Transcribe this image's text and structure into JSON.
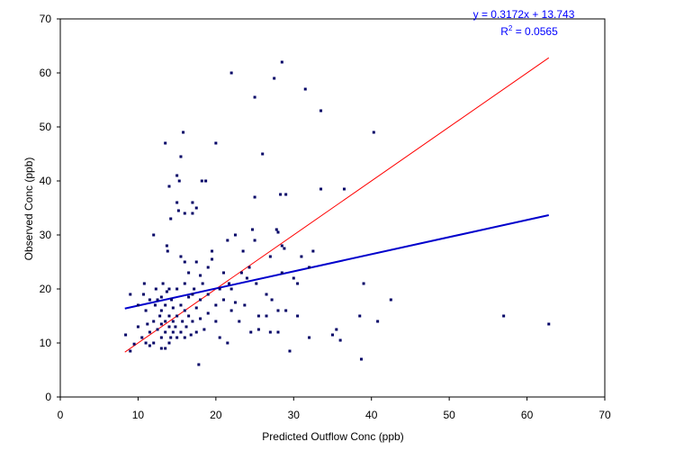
{
  "chart_data": {
    "type": "scatter",
    "title": "",
    "xlabel": "Predicted Outflow Conc (ppb)",
    "ylabel": "Observed Conc (ppb)",
    "xlim": [
      0,
      70
    ],
    "ylim": [
      0,
      70
    ],
    "x_ticks": [
      0,
      10,
      20,
      30,
      40,
      50,
      60,
      70
    ],
    "y_ticks": [
      0,
      10,
      20,
      30,
      40,
      50,
      60,
      70
    ],
    "grid": false,
    "legend": "none",
    "colors": {
      "points": "#000066",
      "fit_line": "#0000cc",
      "one_to_one_line": "#ff0000",
      "equation_text": "#0000ff"
    },
    "series": [
      {
        "values": [
          [
            8.4,
            11.5
          ],
          [
            9.0,
            19.0
          ],
          [
            9.0,
            8.5
          ],
          [
            9.5,
            9.8
          ],
          [
            10.0,
            13.0
          ],
          [
            10.0,
            17.0
          ],
          [
            10.5,
            11.0
          ],
          [
            10.7,
            19.0
          ],
          [
            10.8,
            21.0
          ],
          [
            11.0,
            10.0
          ],
          [
            11.0,
            16.0
          ],
          [
            11.2,
            13.5
          ],
          [
            11.5,
            9.5
          ],
          [
            11.5,
            12.0
          ],
          [
            11.5,
            18.0
          ],
          [
            12.0,
            30.0
          ],
          [
            12.0,
            10.0
          ],
          [
            12.0,
            14.0
          ],
          [
            12.2,
            17.0
          ],
          [
            12.3,
            20.0
          ],
          [
            12.5,
            12.5
          ],
          [
            12.5,
            18.0
          ],
          [
            12.8,
            15.0
          ],
          [
            13.0,
            9.0
          ],
          [
            13.0,
            11.0
          ],
          [
            13.0,
            13.5
          ],
          [
            13.0,
            16.0
          ],
          [
            13.0,
            18.5
          ],
          [
            13.2,
            21.0
          ],
          [
            13.5,
            47.0
          ],
          [
            13.5,
            9.0
          ],
          [
            13.5,
            12.0
          ],
          [
            13.5,
            14.0
          ],
          [
            13.5,
            17.0
          ],
          [
            13.7,
            28.0
          ],
          [
            13.7,
            19.5
          ],
          [
            13.8,
            27.0
          ],
          [
            14.0,
            39.0
          ],
          [
            14.0,
            10.0
          ],
          [
            14.0,
            13.0
          ],
          [
            14.0,
            15.0
          ],
          [
            14.0,
            20.0
          ],
          [
            14.2,
            33.0
          ],
          [
            14.2,
            11.0
          ],
          [
            14.3,
            18.0
          ],
          [
            14.5,
            12.0
          ],
          [
            14.5,
            14.0
          ],
          [
            14.5,
            16.5
          ],
          [
            14.8,
            13.0
          ],
          [
            15.0,
            41.0
          ],
          [
            15.0,
            36.0
          ],
          [
            15.0,
            11.0
          ],
          [
            15.0,
            15.0
          ],
          [
            15.0,
            20.0
          ],
          [
            15.2,
            34.5
          ],
          [
            15.3,
            40.0
          ],
          [
            15.5,
            44.5
          ],
          [
            15.5,
            26.0
          ],
          [
            15.5,
            12.0
          ],
          [
            15.5,
            17.0
          ],
          [
            15.7,
            14.0
          ],
          [
            15.8,
            49.0
          ],
          [
            16.0,
            34.0
          ],
          [
            16.0,
            25.0
          ],
          [
            16.0,
            21.0
          ],
          [
            16.0,
            11.0
          ],
          [
            16.0,
            16.0
          ],
          [
            16.2,
            13.0
          ],
          [
            16.5,
            15.0
          ],
          [
            16.5,
            18.5
          ],
          [
            16.5,
            23.0
          ],
          [
            16.8,
            11.5
          ],
          [
            17.0,
            36.0
          ],
          [
            17.0,
            34.0
          ],
          [
            17.0,
            19.0
          ],
          [
            17.0,
            14.0
          ],
          [
            17.2,
            20.0
          ],
          [
            17.5,
            35.0
          ],
          [
            17.5,
            25.0
          ],
          [
            17.5,
            12.0
          ],
          [
            17.5,
            16.5
          ],
          [
            17.8,
            6.0
          ],
          [
            18.0,
            22.5
          ],
          [
            18.0,
            14.5
          ],
          [
            18.0,
            18.0
          ],
          [
            18.2,
            40.0
          ],
          [
            18.3,
            21.0
          ],
          [
            18.5,
            12.5
          ],
          [
            18.7,
            40.0
          ],
          [
            19.0,
            19.0
          ],
          [
            19.0,
            15.5
          ],
          [
            19.0,
            24.0
          ],
          [
            19.5,
            25.5
          ],
          [
            19.5,
            27.0
          ],
          [
            20.0,
            47.0
          ],
          [
            20.0,
            17.0
          ],
          [
            20.0,
            14.0
          ],
          [
            20.5,
            20.0
          ],
          [
            20.5,
            11.0
          ],
          [
            21.0,
            23.0
          ],
          [
            21.0,
            18.0
          ],
          [
            21.5,
            29.0
          ],
          [
            21.5,
            10.0
          ],
          [
            21.7,
            21.0
          ],
          [
            22.0,
            60.0
          ],
          [
            22.0,
            20.0
          ],
          [
            22.0,
            16.0
          ],
          [
            22.5,
            30.0
          ],
          [
            22.5,
            17.5
          ],
          [
            23.0,
            14.0
          ],
          [
            23.3,
            23.0
          ],
          [
            23.5,
            27.0
          ],
          [
            23.7,
            17.0
          ],
          [
            24.0,
            22.0
          ],
          [
            24.3,
            24.0
          ],
          [
            24.5,
            12.0
          ],
          [
            24.7,
            31.0
          ],
          [
            25.0,
            55.5
          ],
          [
            25.0,
            37.0
          ],
          [
            25.0,
            29.0
          ],
          [
            25.2,
            21.0
          ],
          [
            25.5,
            15.0
          ],
          [
            25.5,
            12.5
          ],
          [
            26.0,
            45.0
          ],
          [
            26.5,
            19.0
          ],
          [
            26.5,
            15.0
          ],
          [
            27.0,
            26.0
          ],
          [
            27.0,
            12.0
          ],
          [
            27.2,
            18.0
          ],
          [
            27.5,
            59.0
          ],
          [
            27.8,
            31.0
          ],
          [
            28.0,
            30.5
          ],
          [
            28.0,
            16.0
          ],
          [
            28.0,
            12.0
          ],
          [
            28.3,
            37.5
          ],
          [
            28.5,
            62.0
          ],
          [
            28.5,
            23.0
          ],
          [
            28.5,
            28.0
          ],
          [
            28.8,
            27.5
          ],
          [
            29.0,
            37.5
          ],
          [
            29.0,
            16.0
          ],
          [
            29.5,
            8.5
          ],
          [
            30.0,
            22.0
          ],
          [
            30.5,
            15.0
          ],
          [
            30.5,
            21.0
          ],
          [
            31.0,
            26.0
          ],
          [
            31.5,
            57.0
          ],
          [
            32.0,
            24.0
          ],
          [
            32.0,
            11.0
          ],
          [
            32.5,
            27.0
          ],
          [
            33.5,
            53.0
          ],
          [
            33.5,
            38.5
          ],
          [
            35.0,
            11.5
          ],
          [
            35.5,
            12.5
          ],
          [
            36.0,
            10.5
          ],
          [
            36.5,
            38.5
          ],
          [
            38.5,
            15.0
          ],
          [
            38.7,
            7.0
          ],
          [
            39.0,
            21.0
          ],
          [
            40.3,
            49.0
          ],
          [
            40.8,
            14.0
          ],
          [
            42.5,
            18.0
          ],
          [
            57.0,
            15.0
          ],
          [
            62.8,
            13.5
          ]
        ]
      }
    ],
    "fit": {
      "slope": 0.3172,
      "intercept": 13.743,
      "x_range": [
        8.3,
        62.8
      ]
    },
    "one_to_one": {
      "x_range": [
        8.3,
        62.8
      ]
    },
    "annotation": {
      "equation": "y = 0.3172x + 13.743",
      "r2_prefix": "R",
      "r2_sup": "2",
      "r2_suffix": " = 0.0565"
    }
  }
}
